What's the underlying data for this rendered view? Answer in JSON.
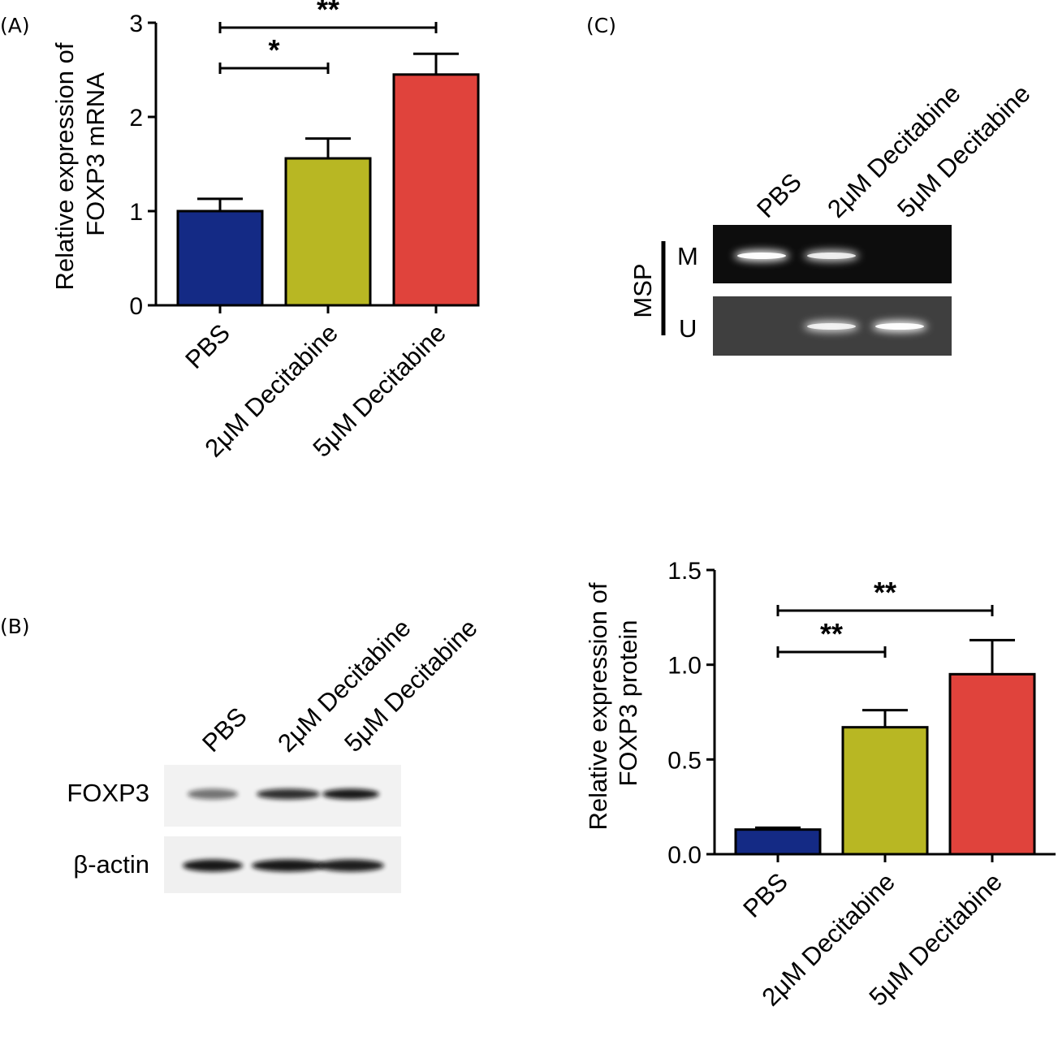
{
  "panels": {
    "a": "(A)",
    "b": "(B)",
    "c": "(C)"
  },
  "colors": {
    "pbs": "#142a85",
    "dec2": "#b8b723",
    "dec5": "#e0433c"
  },
  "chart_data": [
    {
      "type": "bar",
      "ylabel": [
        "Relative expression of",
        "FOXP3 mRNA"
      ],
      "categories": [
        "PBS",
        "2μM Decitabine",
        "5μM Decitabine"
      ],
      "values": [
        1.0,
        1.56,
        2.45
      ],
      "errors": [
        0.13,
        0.21,
        0.22
      ],
      "ylim": [
        0,
        3
      ],
      "yticks": [
        "0",
        "1",
        "2",
        "3"
      ],
      "significance": [
        {
          "from": 0,
          "to": 1,
          "label": "*"
        },
        {
          "from": 0,
          "to": 2,
          "label": "**"
        }
      ]
    },
    {
      "type": "bar",
      "ylabel": [
        "Relative expression of",
        "FOXP3 protein"
      ],
      "categories": [
        "PBS",
        "2μM Decitabine",
        "5μM Decitabine"
      ],
      "values": [
        0.13,
        0.67,
        0.95
      ],
      "errors": [
        0.01,
        0.09,
        0.18
      ],
      "ylim": [
        0,
        1.5
      ],
      "yticks": [
        "0.0",
        "0.5",
        "1.0",
        "1.5"
      ],
      "significance": [
        {
          "from": 0,
          "to": 1,
          "label": "**"
        },
        {
          "from": 0,
          "to": 2,
          "label": "**"
        }
      ]
    }
  ],
  "western_blot": {
    "lanes": [
      "PBS",
      "2μM Decitabine",
      "5μM Decitabine"
    ],
    "rows": [
      "FOXP3",
      "β-actin"
    ],
    "band_intensity": {
      "FOXP3": [
        0.55,
        0.85,
        0.95
      ],
      "β-actin": [
        0.95,
        0.95,
        0.92
      ]
    }
  },
  "msp_gel": {
    "lanes": [
      "PBS",
      "2μM Decitabine",
      "5μM Decitabine"
    ],
    "group_label": "MSP",
    "rows": [
      "M",
      "U"
    ],
    "band_intensity": {
      "M": [
        0.95,
        0.8,
        0.0
      ],
      "U": [
        0.0,
        0.8,
        0.95
      ]
    }
  }
}
